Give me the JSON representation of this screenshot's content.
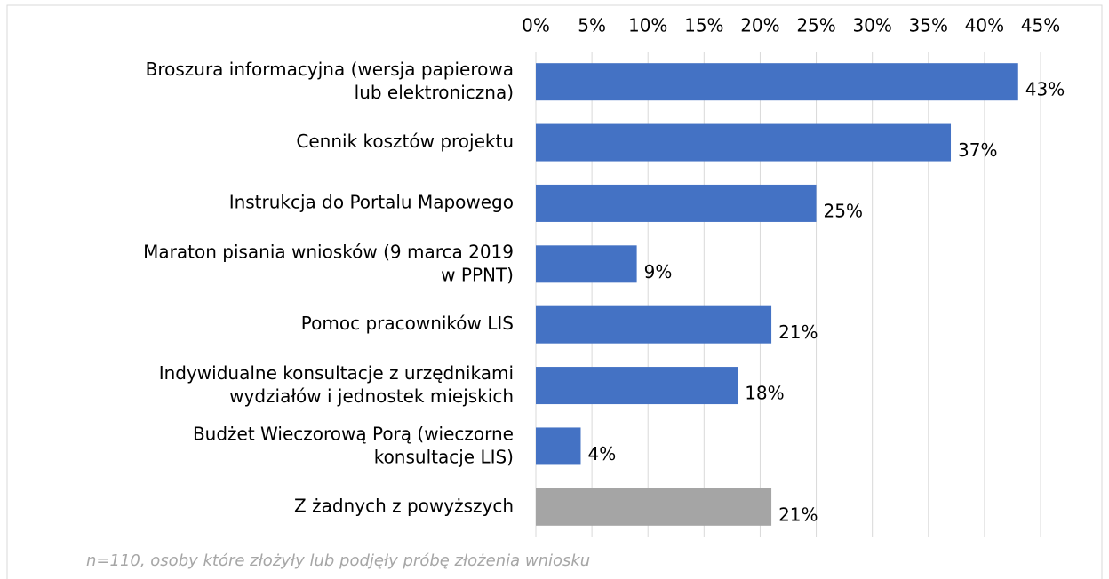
{
  "chart_data": {
    "type": "bar",
    "categories": [
      "Broszura informacyjna (wersja papierowa lub elektroniczna)",
      "Cennik kosztów projektu",
      "Instrukcja do Portalu Mapowego",
      "Maraton pisania wniosków (9 marca 2019 w PPNT)",
      "Pomoc pracowników LIS",
      "Indywidualne konsultacje z urzędnikami wydziałów i jednostek miejskich",
      "Budżet Wieczorową Porą (wieczorne konsultacje LIS)",
      "Z żadnych z powyższych"
    ],
    "values": [
      43,
      37,
      25,
      9,
      21,
      18,
      4,
      21
    ],
    "value_labels": [
      "43%",
      "37%",
      "25%",
      "9%",
      "21%",
      "18%",
      "4%",
      "21%"
    ],
    "colors": [
      "#4472c4",
      "#4472c4",
      "#4472c4",
      "#4472c4",
      "#4472c4",
      "#4472c4",
      "#4472c4",
      "#a5a5a5"
    ],
    "xlim": [
      0,
      45
    ],
    "xticks": [
      {
        "value": 0,
        "label": "0%"
      },
      {
        "value": 5,
        "label": "5%"
      },
      {
        "value": 10,
        "label": "10%"
      },
      {
        "value": 15,
        "label": "15%"
      },
      {
        "value": 20,
        "label": "20%"
      },
      {
        "value": 25,
        "label": "25%"
      },
      {
        "value": 30,
        "label": "30%"
      },
      {
        "value": 35,
        "label": "35%"
      },
      {
        "value": 40,
        "label": "40%"
      },
      {
        "value": 45,
        "label": "45%"
      }
    ],
    "grid": true,
    "note": "n=110, osoby które złożyły lub podjęły próbę złożenia wniosku"
  }
}
